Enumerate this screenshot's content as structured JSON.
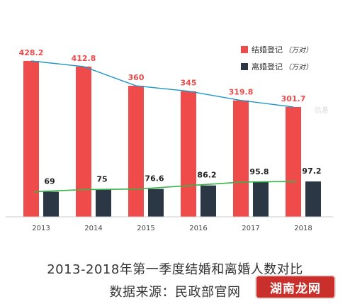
{
  "colors": {
    "marriage": "#f04b4b",
    "divorce": "#2c3746",
    "marriage_trend": "#1f97c6",
    "divorce_trend": "#39b44a",
    "axis": "#cccccc",
    "label_marriage": "#f04b4b",
    "label_divorce": "#222222"
  },
  "chart_data": {
    "type": "bar",
    "categories": [
      "2013",
      "2014",
      "2015",
      "2016",
      "2017",
      "2018"
    ],
    "series": [
      {
        "name": "结婚登记",
        "values": [
          428.2,
          412.8,
          360,
          345,
          319.8,
          301.7
        ],
        "color": "#f04b4b"
      },
      {
        "name": "离婚登记",
        "values": [
          69,
          75,
          76.6,
          86.2,
          95.8,
          97.2
        ],
        "color": "#2c3746"
      }
    ],
    "value_labels": {
      "marriage": [
        "428.2",
        "412.8",
        "360",
        "345",
        "319.8",
        "301.7"
      ],
      "divorce": [
        "69",
        "75",
        "76.6",
        "86.2",
        "95.8",
        "97.2"
      ]
    },
    "trend_lines": true,
    "ylim": [
      0,
      470
    ],
    "grid": false,
    "legend_position": "top-right"
  },
  "legend": [
    {
      "name": "结婚登记",
      "unit": "（万对）"
    },
    {
      "name": "离婚登记",
      "unit": "（万对）"
    }
  ],
  "caption": {
    "title": "2013-2018年第一季度结婚和离婚人数对比",
    "source": "数据来源：民政部官网"
  },
  "watermark": {
    "logo_text": "湖南龙网",
    "corner_text": "信息"
  }
}
